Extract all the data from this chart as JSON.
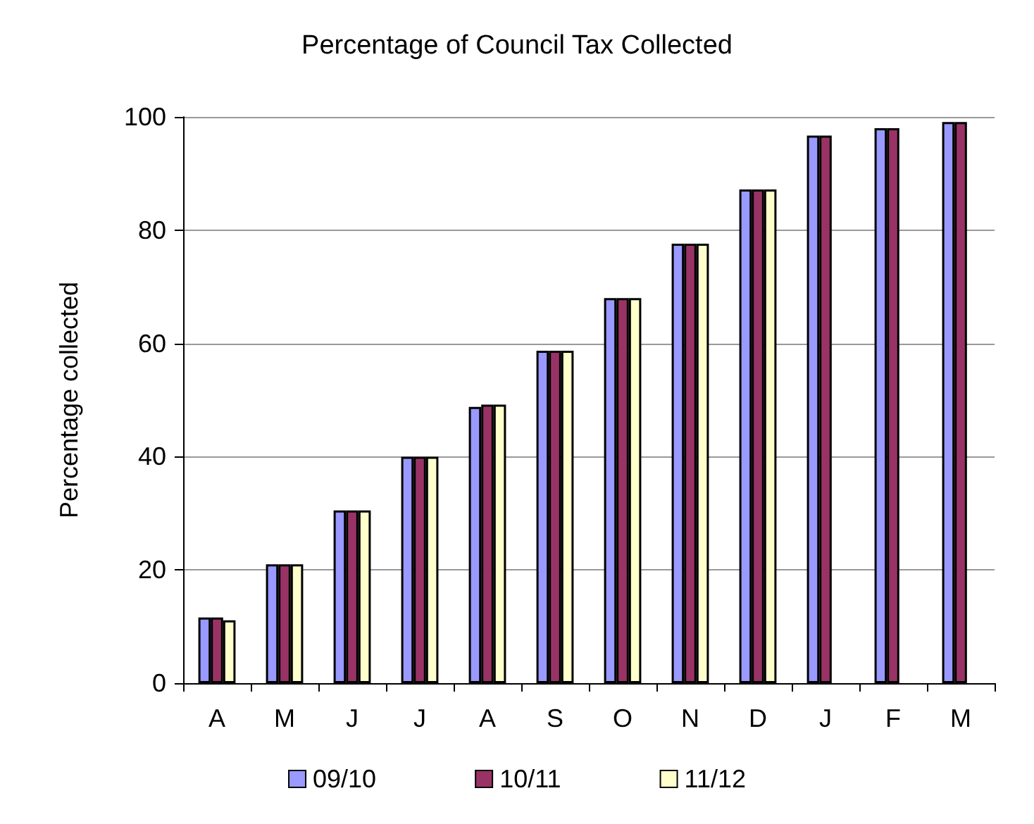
{
  "chart_data": {
    "type": "bar",
    "title": "Percentage of Council Tax Collected",
    "ylabel": "Percentage collected",
    "categories": [
      "A",
      "M",
      "J",
      "J",
      "A",
      "S",
      "O",
      "N",
      "D",
      "J",
      "F",
      "M"
    ],
    "series": [
      {
        "name": "09/10",
        "color": "#9999ff",
        "values": [
          11.6,
          21.0,
          30.5,
          40.0,
          48.8,
          58.7,
          68.0,
          77.6,
          87.2,
          96.7,
          98.0,
          99.1
        ]
      },
      {
        "name": "10/11",
        "color": "#993366",
        "values": [
          11.6,
          21.0,
          30.5,
          40.0,
          49.2,
          58.7,
          68.0,
          77.6,
          87.2,
          96.7,
          98.0,
          99.1
        ]
      },
      {
        "name": "11/12",
        "color": "#ffffcc",
        "values": [
          11.1,
          21.0,
          30.5,
          40.0,
          49.2,
          58.7,
          68.0,
          77.6,
          87.2,
          null,
          null,
          null
        ]
      }
    ],
    "ylim": [
      0,
      100
    ],
    "yticks": [
      0,
      20,
      40,
      60,
      80,
      100
    ],
    "grid": "y",
    "legend": "bottom"
  }
}
